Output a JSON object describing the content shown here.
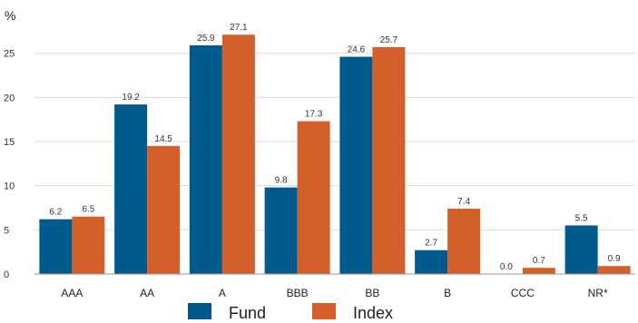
{
  "chart_data": {
    "type": "bar",
    "ylabel": "%",
    "ylim": [
      0,
      30
    ],
    "yticks": [
      0,
      5,
      10,
      15,
      20,
      25
    ],
    "grid": true,
    "legend_position": "bottom",
    "categories": [
      "AAA",
      "AA",
      "A",
      "BBB",
      "BB",
      "B",
      "CCC",
      "NR*"
    ],
    "series": [
      {
        "name": "Fund",
        "color": "#005a8c",
        "values": [
          6.2,
          19.2,
          25.9,
          9.8,
          24.6,
          2.7,
          0.0,
          5.5
        ],
        "labels": [
          "6.2",
          "19.2",
          "25.9",
          "9.8",
          "24.6",
          "2.7",
          "0.0",
          "5.5"
        ]
      },
      {
        "name": "Index",
        "color": "#d35f2a",
        "values": [
          6.5,
          14.5,
          27.1,
          17.3,
          25.7,
          7.4,
          0.7,
          0.9
        ],
        "labels": [
          "6.5",
          "14.5",
          "27.1",
          "17.3",
          "25.7",
          "7.4",
          "0.7",
          "0.9"
        ]
      }
    ]
  }
}
